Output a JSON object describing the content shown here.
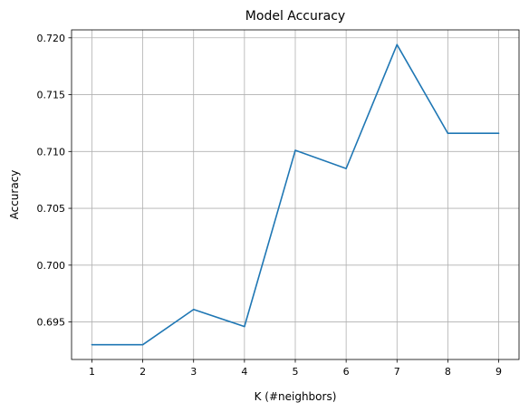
{
  "chart_data": {
    "type": "line",
    "title": "Model Accuracy",
    "xlabel": "K (#neighbors)",
    "ylabel": "Accuracy",
    "x": [
      1,
      2,
      3,
      4,
      5,
      6,
      7,
      8,
      9
    ],
    "series": [
      {
        "values": [
          0.693,
          0.693,
          0.6961,
          0.6946,
          0.7101,
          0.7085,
          0.7194,
          0.7116,
          0.7116
        ]
      }
    ],
    "xlim": [
      0.6,
      9.4
    ],
    "ylim": [
      0.6917,
      0.7207
    ],
    "xticks": [
      1,
      2,
      3,
      4,
      5,
      6,
      7,
      8,
      9
    ],
    "yticks": [
      0.695,
      0.7,
      0.705,
      0.71,
      0.715,
      0.72
    ],
    "yticklabels": [
      "0.695",
      "0.700",
      "0.705",
      "0.710",
      "0.715",
      "0.720"
    ],
    "grid": true,
    "line_color": "#1f77b4",
    "grid_color": "#b0b0b0"
  }
}
